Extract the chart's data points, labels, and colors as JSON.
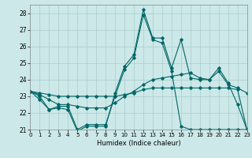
{
  "xlabel": "Humidex (Indice chaleur)",
  "ylabel": "",
  "bg_color": "#cce8e8",
  "line_color": "#006666",
  "grid_color": "#aacccc",
  "xlim": [
    0,
    23
  ],
  "ylim": [
    21,
    28.5
  ],
  "yticks": [
    21,
    22,
    23,
    24,
    25,
    26,
    27,
    28
  ],
  "xticks": [
    0,
    1,
    2,
    3,
    4,
    5,
    6,
    7,
    8,
    9,
    10,
    11,
    12,
    13,
    14,
    15,
    16,
    17,
    18,
    19,
    20,
    21,
    22,
    23
  ],
  "series": [
    [
      23.3,
      23.0,
      22.2,
      22.3,
      22.2,
      20.9,
      21.2,
      21.2,
      21.2,
      23.2,
      24.8,
      25.5,
      28.2,
      26.5,
      26.5,
      24.7,
      26.4,
      24.1,
      24.0,
      24.0,
      24.7,
      23.8,
      22.5,
      21.0
    ],
    [
      23.3,
      22.8,
      22.2,
      22.4,
      22.4,
      21.0,
      21.3,
      21.3,
      21.3,
      23.0,
      24.6,
      25.3,
      27.9,
      26.4,
      26.2,
      24.5,
      21.2,
      21.0,
      21.0,
      21.0,
      21.0,
      21.0,
      21.0,
      21.0
    ],
    [
      23.3,
      23.1,
      22.8,
      22.5,
      22.5,
      22.4,
      22.3,
      22.3,
      22.3,
      22.6,
      23.0,
      23.3,
      23.7,
      24.0,
      24.1,
      24.2,
      24.3,
      24.4,
      24.1,
      24.0,
      24.5,
      23.7,
      23.5,
      23.2
    ],
    [
      23.3,
      23.2,
      23.1,
      23.0,
      23.0,
      23.0,
      23.0,
      23.0,
      23.0,
      23.0,
      23.1,
      23.2,
      23.4,
      23.5,
      23.5,
      23.5,
      23.5,
      23.5,
      23.5,
      23.5,
      23.5,
      23.5,
      23.4,
      21.0
    ]
  ]
}
